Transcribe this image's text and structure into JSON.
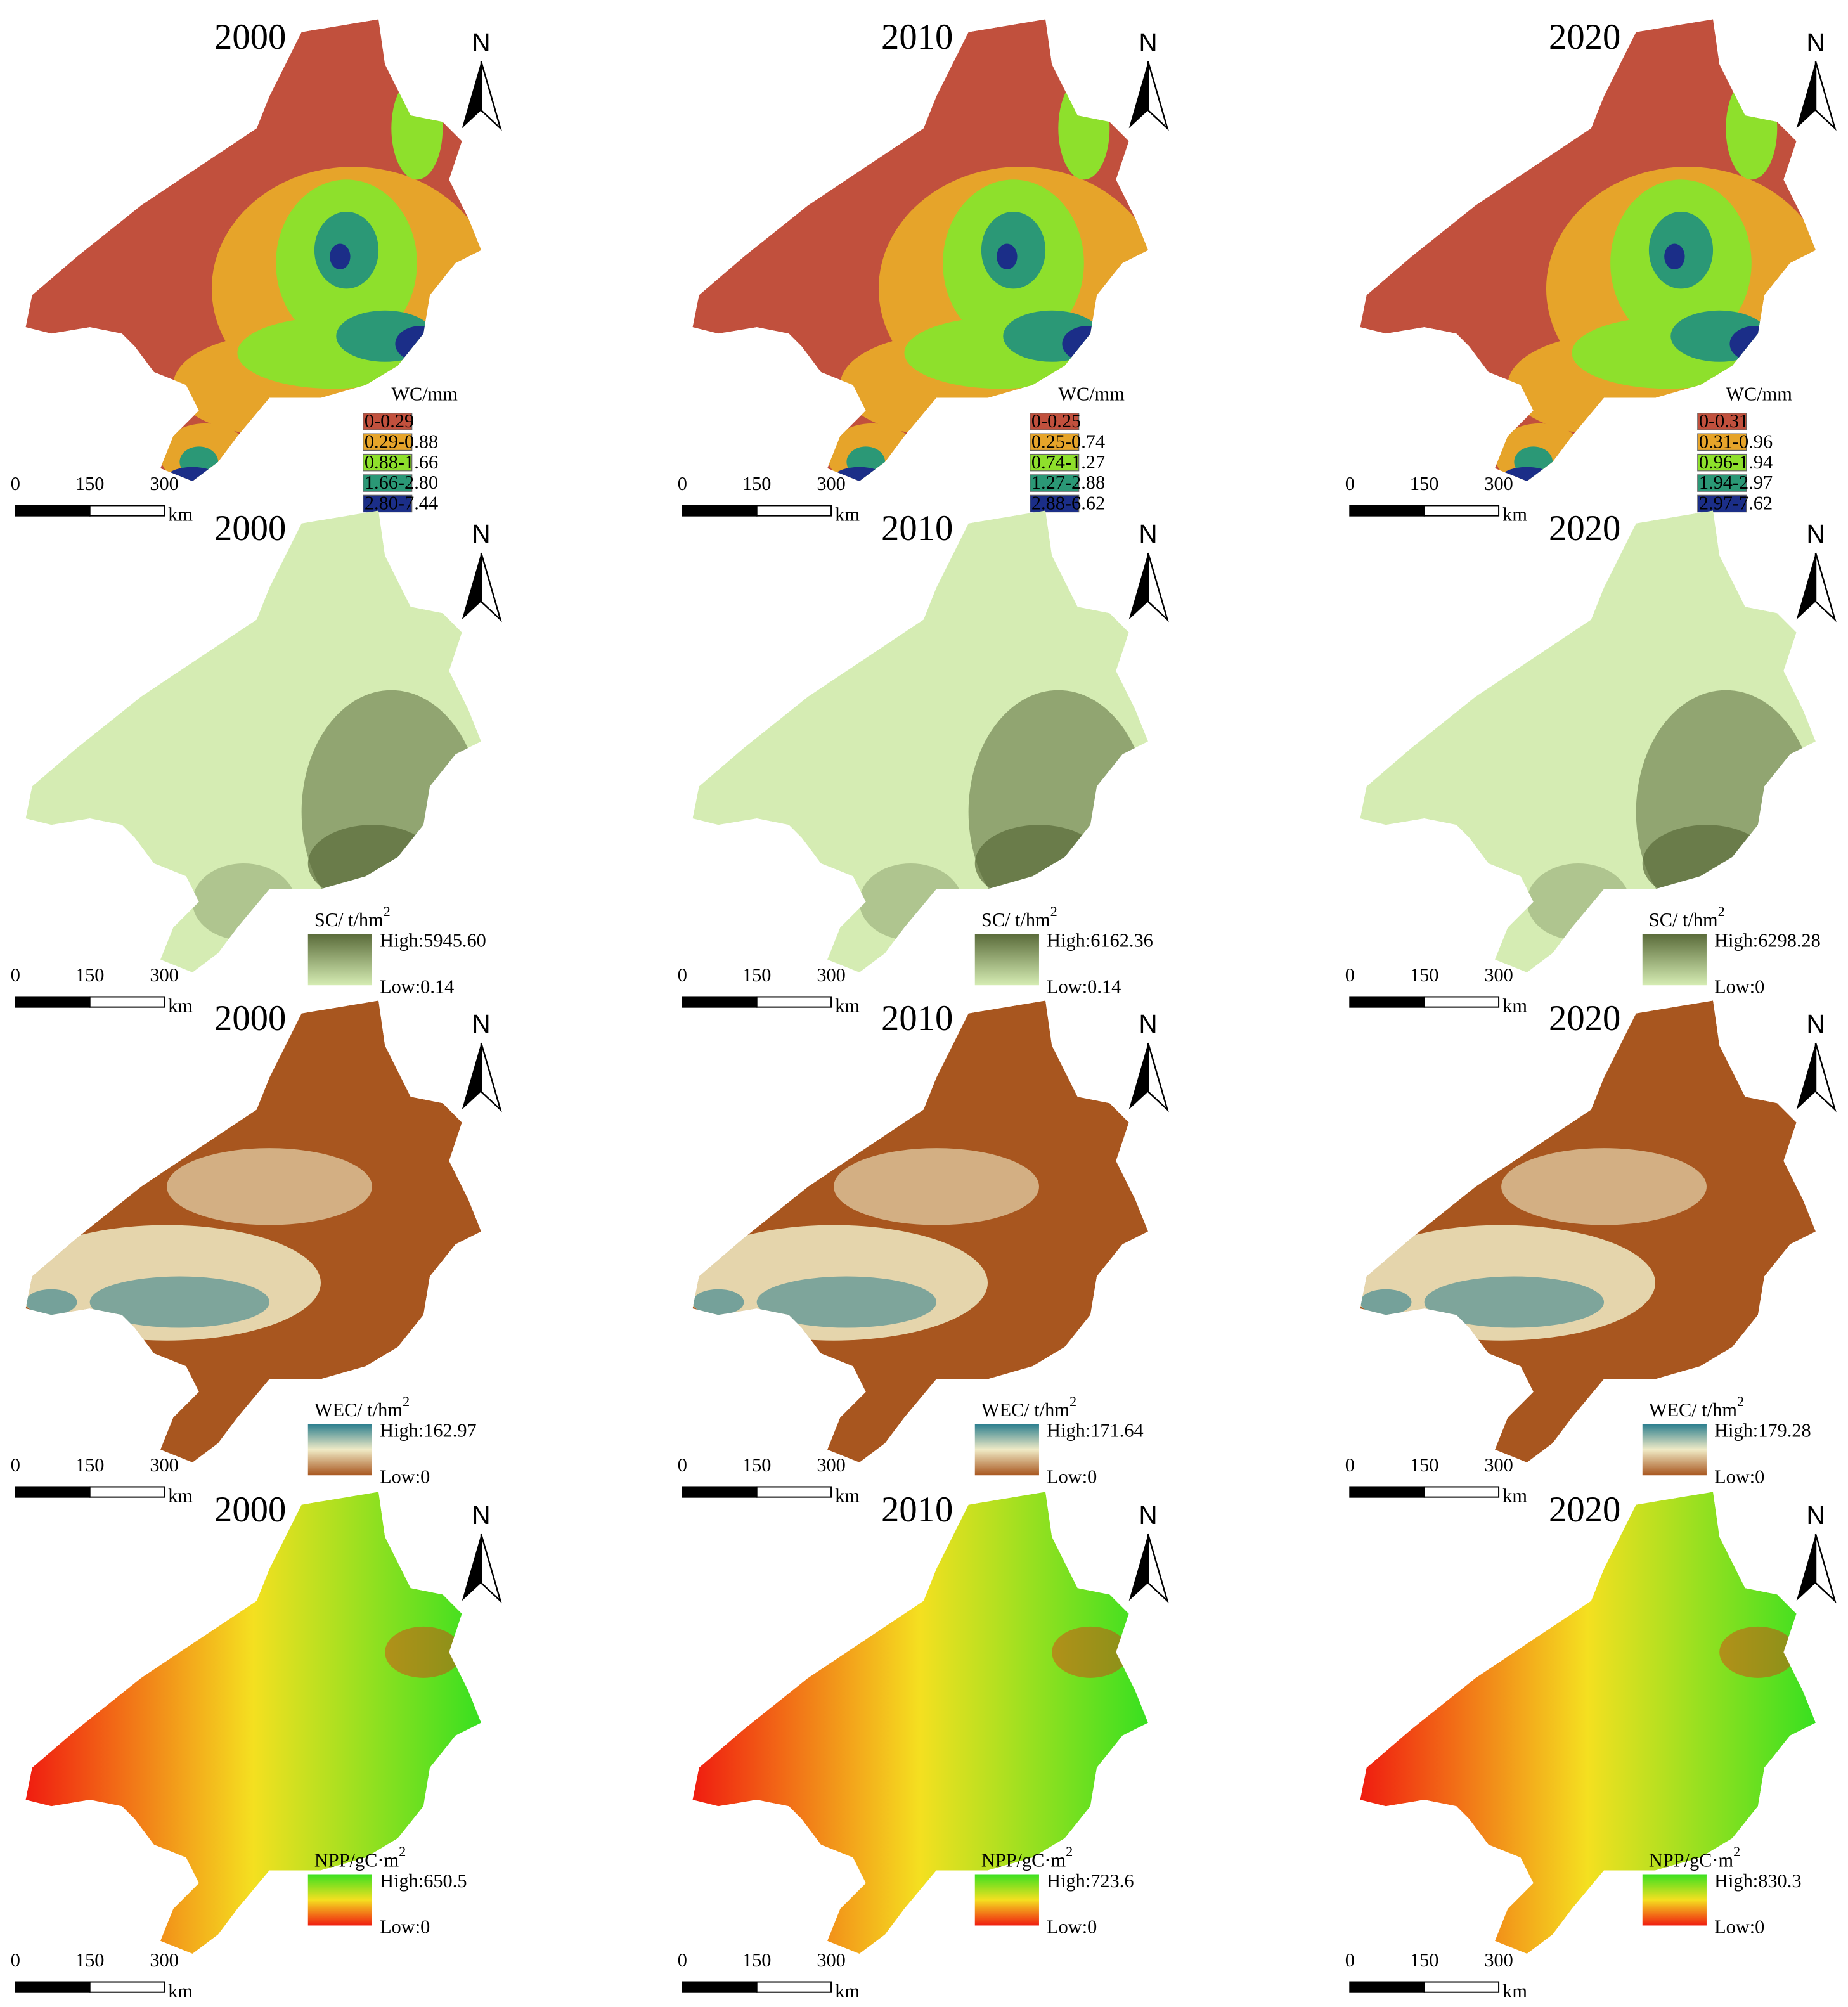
{
  "north": "N",
  "scale_bar": {
    "labels": [
      "0",
      "150",
      "300"
    ],
    "unit": "km"
  },
  "rows": [
    {
      "kind": "classes",
      "legend_title": "WC/mm",
      "colors": [
        "#c1503d",
        "#e6a42a",
        "#8ee02c",
        "#2b9876",
        "#1b2e88"
      ],
      "panels": [
        {
          "year": "2000",
          "classes": [
            "0-0.29",
            "0.29-0.88",
            "0.88-1.66",
            "1.66-2.80",
            "2.80-7.44"
          ]
        },
        {
          "year": "2010",
          "classes": [
            "0-0.25",
            "0.25-0.74",
            "0.74-1.27",
            "1.27-2.88",
            "2.88-6.62"
          ]
        },
        {
          "year": "2020",
          "classes": [
            "0-0.31",
            "0.31-0.96",
            "0.96-1.94",
            "1.94-2.97",
            "2.97-7.62"
          ]
        }
      ]
    },
    {
      "kind": "gradient",
      "legend_title": "SC/ t/hm",
      "legend_sup": "2",
      "colors": [
        "#5a6b3a",
        "#d5ecb3"
      ],
      "panels": [
        {
          "year": "2000",
          "high": "High:5945.60",
          "low": "Low:0.14"
        },
        {
          "year": "2010",
          "high": "High:6162.36",
          "low": "Low:0.14"
        },
        {
          "year": "2020",
          "high": "High:6298.28",
          "low": "Low:0"
        }
      ]
    },
    {
      "kind": "gradient",
      "legend_title": "WEC/ t/hm",
      "legend_sup": "2",
      "colors": [
        "#2a7e8e",
        "#f0ebc6",
        "#a8561f"
      ],
      "panels": [
        {
          "year": "2000",
          "high": "High:162.97",
          "low": "Low:0"
        },
        {
          "year": "2010",
          "high": "High:171.64",
          "low": "Low:0"
        },
        {
          "year": "2020",
          "high": "High:179.28",
          "low": "Low:0"
        }
      ]
    },
    {
      "kind": "gradient",
      "legend_title": "NPP/gC·m",
      "legend_sup": "2",
      "colors": [
        "#38e020",
        "#f4e020",
        "#f01c10"
      ],
      "panels": [
        {
          "year": "2000",
          "high": "High:650.5",
          "low": "Low:0"
        },
        {
          "year": "2010",
          "high": "High:723.6",
          "low": "Low:0"
        },
        {
          "year": "2020",
          "high": "High:830.3",
          "low": "Low:0"
        }
      ]
    }
  ]
}
